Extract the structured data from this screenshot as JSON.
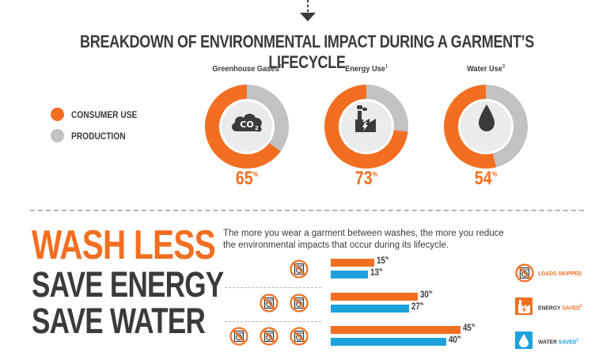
{
  "title": "BREAKDOWN OF ENVIRONMENTAL IMPACT DURING A GARMENT’S LIFECYCLE",
  "colors": {
    "consumer": "#f26f21",
    "production": "#c2c2c4",
    "water": "#1da1db",
    "dark": "#3b3b3b"
  },
  "legend": [
    {
      "label": "CONSUMER USE",
      "color": "#f26f21"
    },
    {
      "label": "PRODUCTION",
      "color": "#c2c2c4"
    }
  ],
  "chart_data": [
    {
      "type": "pie",
      "title": "",
      "series": [
        {
          "name": "Greenhouse Gases",
          "footnote": "2",
          "icon": "co2-cloud-icon",
          "consumer_use": 65,
          "pct_label": "65",
          "pct_unit": "%"
        },
        {
          "name": "Energy Use",
          "footnote": "1",
          "icon": "factory-energy-icon",
          "consumer_use": 73,
          "pct_label": "73",
          "pct_unit": "%"
        },
        {
          "name": "Water Use",
          "footnote": "3",
          "icon": "water-drop-icon",
          "consumer_use": 54,
          "pct_label": "54",
          "pct_unit": "%"
        }
      ],
      "legend": [
        "CONSUMER USE",
        "PRODUCTION"
      ]
    },
    {
      "type": "bar",
      "title": "",
      "categories": [
        "1 load skipped",
        "2 loads skipped",
        "3 loads skipped"
      ],
      "series": [
        {
          "name": "ENERGY SAVED",
          "footnote": "2",
          "color": "#f26f21",
          "values": [
            15,
            30,
            45
          ]
        },
        {
          "name": "WATER SAVED",
          "footnote": "3",
          "color": "#1da1db",
          "values": [
            13,
            27,
            40
          ]
        }
      ],
      "loads_skipped": [
        1,
        2,
        3
      ],
      "value_unit": "%",
      "xlim": [
        0,
        50
      ]
    }
  ],
  "headline": {
    "line1": "WASH LESS",
    "line2": "SAVE ENERGY",
    "line3": "SAVE WATER"
  },
  "description": "The more you wear a garment between washes, the more you reduce the environmental impacts that occur during its lifecycle.",
  "legend2": {
    "loads": "LOADS SKIPPED",
    "energy_main": "ENERGY ",
    "energy_accent": "SAVED",
    "energy_fn": "2",
    "water_main": "WATER ",
    "water_accent": "SAVED",
    "water_fn": "3"
  }
}
